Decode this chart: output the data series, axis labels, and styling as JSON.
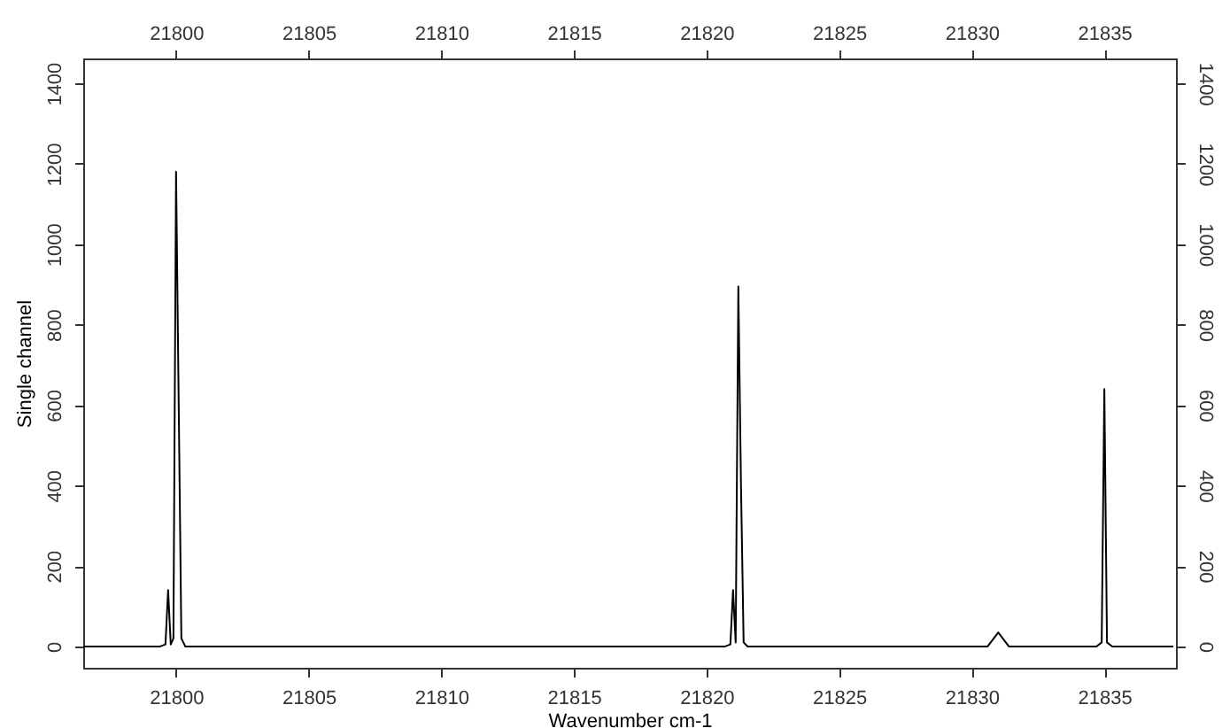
{
  "chart_data": {
    "type": "line",
    "xlabel": "Wavenumber cm-1",
    "ylabel": "Single channel",
    "series": [
      {
        "color": "#000000",
        "x": [
          21796.5,
          21799.4,
          21799.6,
          21799.7,
          21799.8,
          21799.9,
          21800.0,
          21800.1,
          21800.2,
          21800.35,
          21820.7,
          21820.9,
          21821.0,
          21821.1,
          21821.2,
          21821.3,
          21821.4,
          21821.55,
          21830.6,
          21831.0,
          21831.4,
          21834.7,
          21834.9,
          21835.0,
          21835.1,
          21835.3,
          21837.6
        ],
        "values": [
          0,
          0,
          5,
          140,
          5,
          20,
          1180,
          600,
          20,
          0,
          0,
          5,
          140,
          10,
          895,
          400,
          10,
          0,
          0,
          35,
          0,
          0,
          10,
          640,
          10,
          0,
          0
        ]
      }
    ],
    "xlim": [
      21796.5,
      21837.7
    ],
    "xticks": [
      21800,
      21805,
      21810,
      21815,
      21820,
      21825,
      21830,
      21835
    ],
    "x2lim": [
      21796.5,
      21837.7
    ],
    "x2ticks": [
      21800,
      21805,
      21810,
      21815,
      21820,
      21825,
      21830,
      21835
    ],
    "ylim": [
      -53,
      1462
    ],
    "yticks": [
      0,
      200,
      400,
      600,
      800,
      1000,
      1200,
      1400
    ],
    "y2lim": [
      -53,
      1462
    ],
    "y2ticks": [
      0,
      200,
      400,
      600,
      800,
      1000,
      1200,
      1400
    ],
    "grid": false,
    "legend": false,
    "marker": "none",
    "line_style": "solid"
  }
}
